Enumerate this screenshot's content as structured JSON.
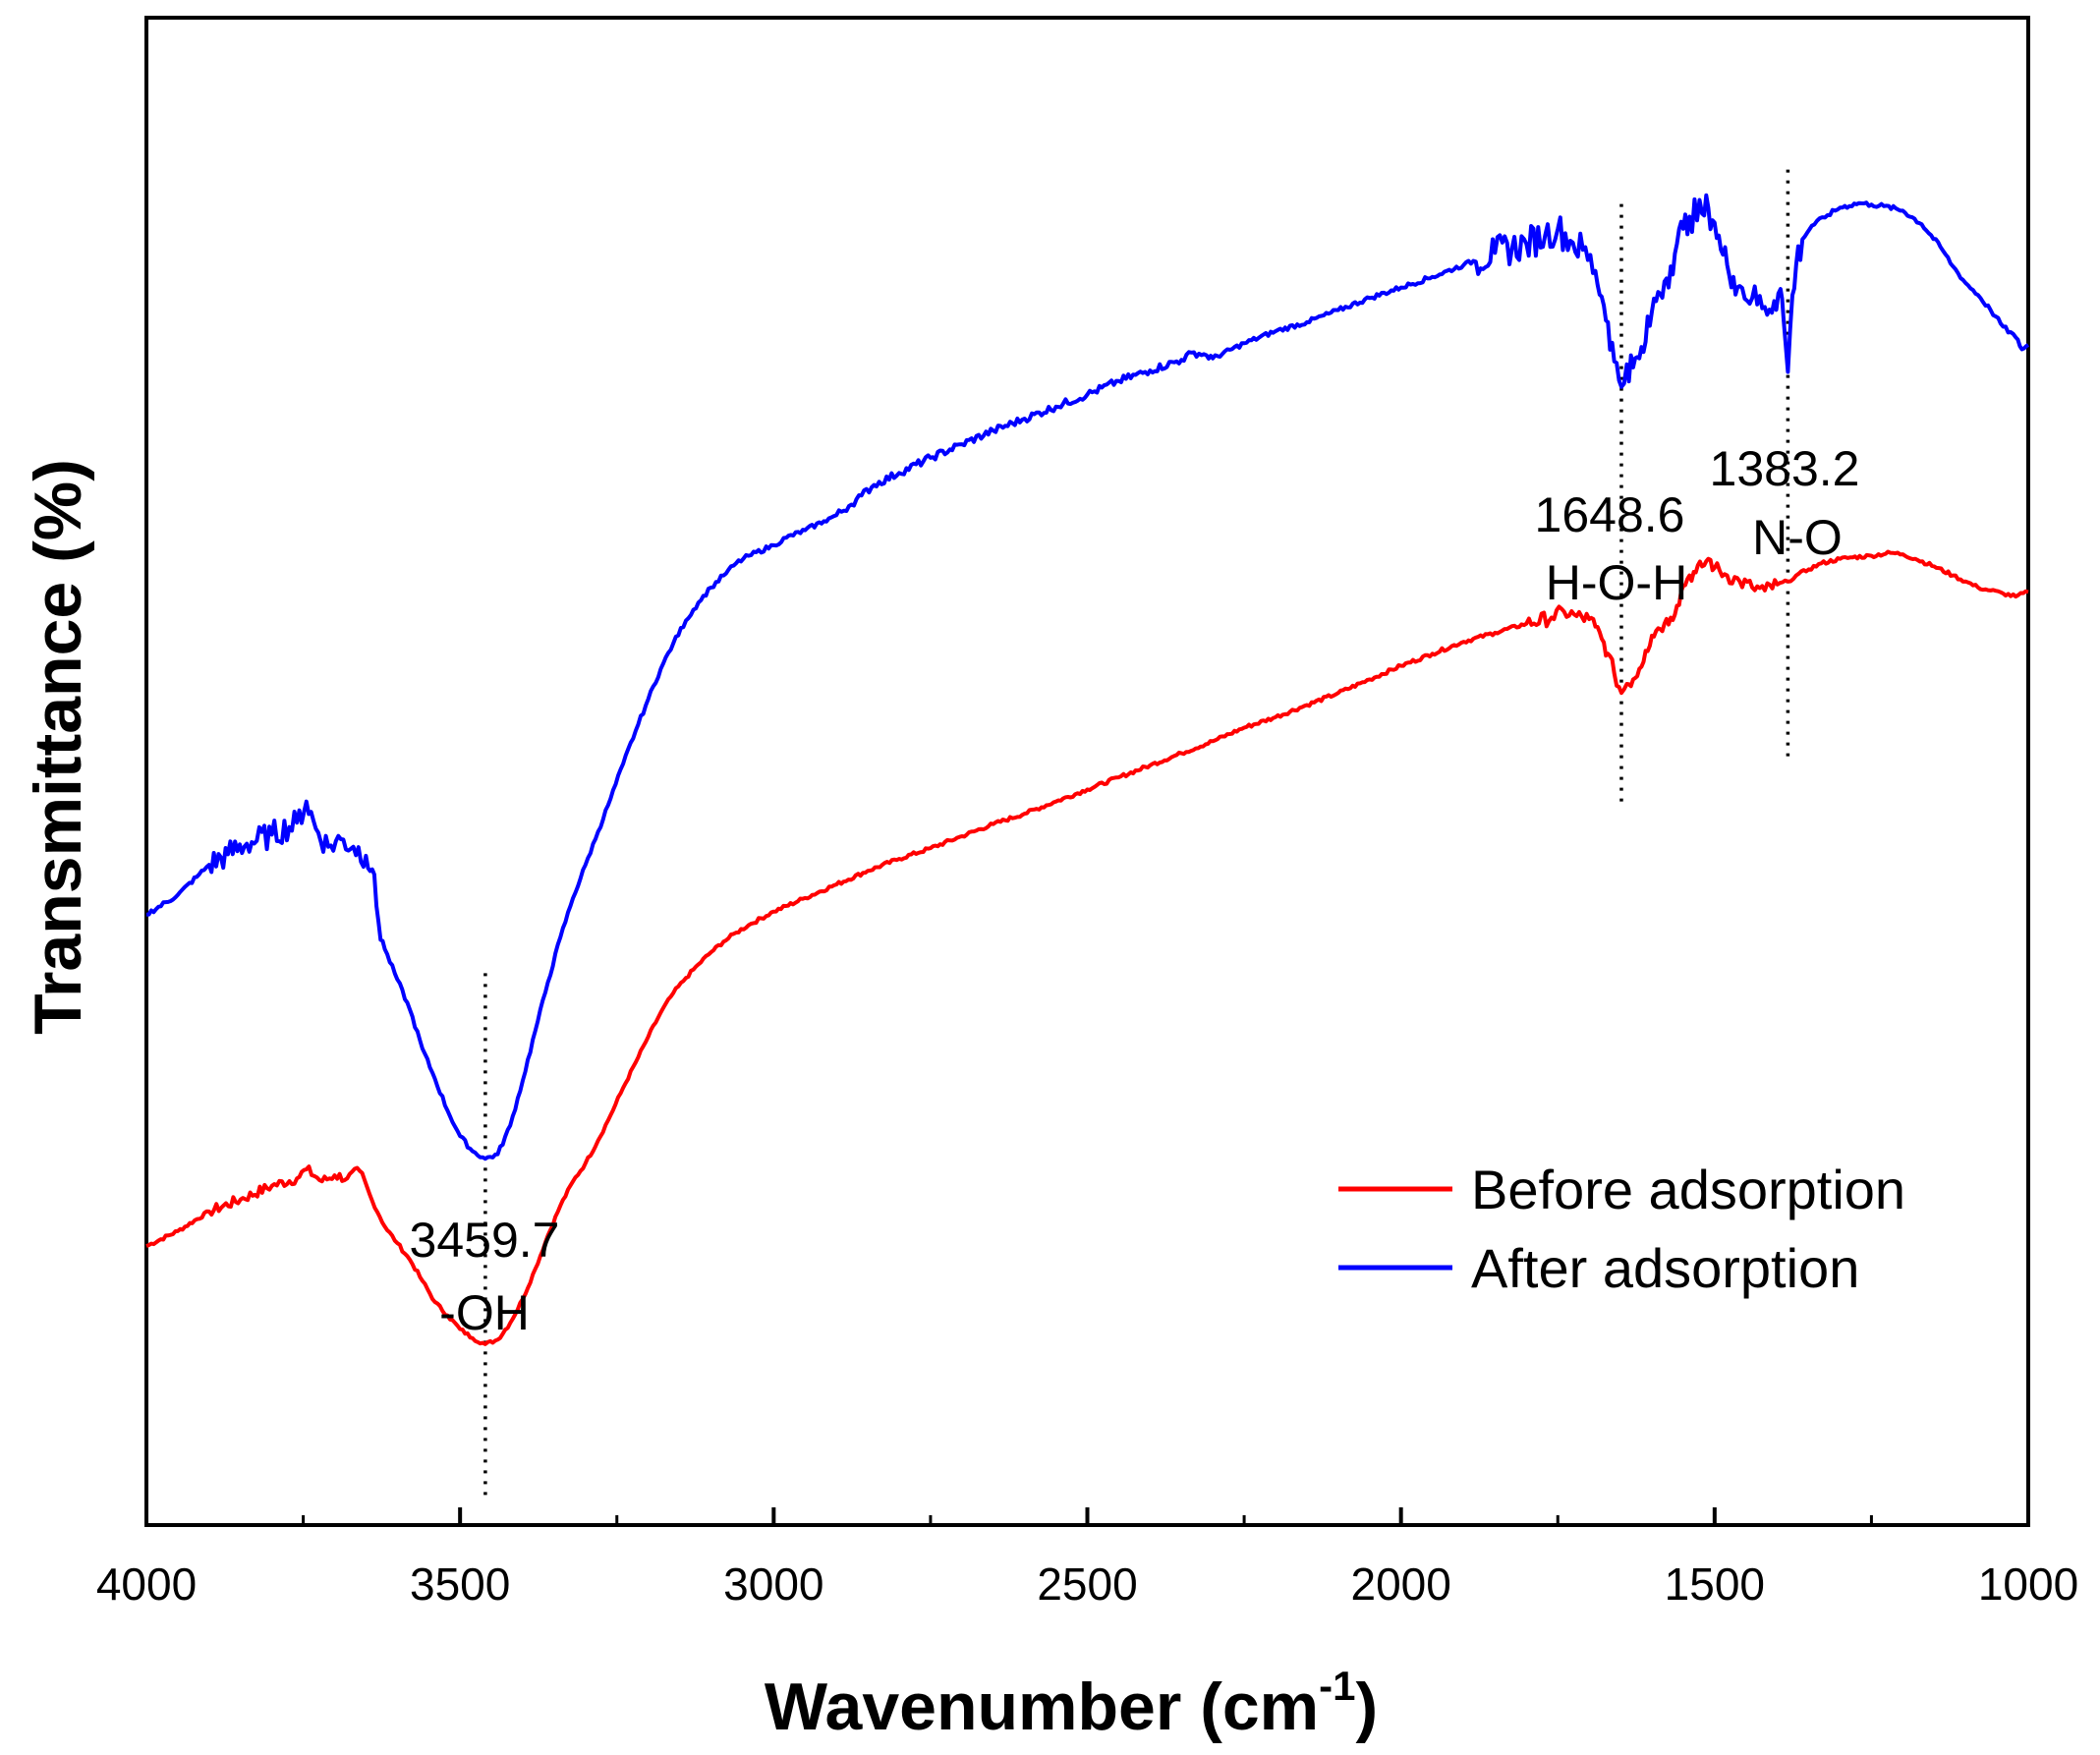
{
  "chart_data": {
    "type": "line",
    "xlabel_main": "Wavenumber (cm",
    "xlabel_sup": "-1",
    "xlabel_close": ")",
    "ylabel": "Transmittance (%)",
    "xlim": [
      4000,
      1000
    ],
    "x_reversed": true,
    "ylim": [
      0,
      100
    ],
    "y_tick_labels": false,
    "grid": false,
    "legend_position": "bottom-right",
    "x_ticks": [
      4000,
      3500,
      3000,
      2500,
      2000,
      1500,
      1000
    ],
    "series": [
      {
        "name": "Before adsorption",
        "color": "#ff0000",
        "points": [
          [
            4000,
            18.5
          ],
          [
            3950,
            19.5
          ],
          [
            3900,
            20.8
          ],
          [
            3850,
            21.6
          ],
          [
            3800,
            22.5
          ],
          [
            3760,
            23.0
          ],
          [
            3745,
            23.6
          ],
          [
            3720,
            22.8
          ],
          [
            3700,
            23.2
          ],
          [
            3680,
            23.0
          ],
          [
            3660,
            23.5
          ],
          [
            3640,
            21.5
          ],
          [
            3620,
            19.8
          ],
          [
            3600,
            18.7
          ],
          [
            3580,
            17.6
          ],
          [
            3560,
            16.2
          ],
          [
            3540,
            14.8
          ],
          [
            3520,
            13.9
          ],
          [
            3500,
            13.0
          ],
          [
            3480,
            12.4
          ],
          [
            3459.7,
            12.0
          ],
          [
            3440,
            12.3
          ],
          [
            3420,
            13.4
          ],
          [
            3400,
            15.0
          ],
          [
            3380,
            17.0
          ],
          [
            3360,
            19.2
          ],
          [
            3340,
            21.2
          ],
          [
            3320,
            22.8
          ],
          [
            3300,
            24.0
          ],
          [
            3280,
            25.5
          ],
          [
            3260,
            27.2
          ],
          [
            3240,
            29.0
          ],
          [
            3220,
            30.7
          ],
          [
            3200,
            32.4
          ],
          [
            3180,
            34.0
          ],
          [
            3160,
            35.3
          ],
          [
            3140,
            36.3
          ],
          [
            3120,
            37.2
          ],
          [
            3100,
            38.0
          ],
          [
            3080,
            38.7
          ],
          [
            3060,
            39.3
          ],
          [
            3040,
            39.8
          ],
          [
            3000,
            40.7
          ],
          [
            2950,
            41.6
          ],
          [
            2900,
            42.5
          ],
          [
            2850,
            43.4
          ],
          [
            2800,
            44.2
          ],
          [
            2750,
            44.9
          ],
          [
            2700,
            45.7
          ],
          [
            2650,
            46.5
          ],
          [
            2600,
            47.2
          ],
          [
            2550,
            48.0
          ],
          [
            2500,
            48.8
          ],
          [
            2450,
            49.6
          ],
          [
            2400,
            50.4
          ],
          [
            2350,
            51.2
          ],
          [
            2300,
            52.0
          ],
          [
            2250,
            52.9
          ],
          [
            2200,
            53.6
          ],
          [
            2150,
            54.4
          ],
          [
            2100,
            55.2
          ],
          [
            2050,
            56.1
          ],
          [
            2000,
            57.0
          ],
          [
            1950,
            57.8
          ],
          [
            1900,
            58.6
          ],
          [
            1850,
            59.2
          ],
          [
            1800,
            59.8
          ],
          [
            1760,
            60.2
          ],
          [
            1740,
            60.6
          ],
          [
            1720,
            60.3
          ],
          [
            1700,
            60.1
          ],
          [
            1690,
            59.6
          ],
          [
            1680,
            58.8
          ],
          [
            1670,
            57.8
          ],
          [
            1660,
            56.5
          ],
          [
            1648.6,
            55.2
          ],
          [
            1640,
            55.8
          ],
          [
            1630,
            56.1
          ],
          [
            1620,
            56.8
          ],
          [
            1610,
            58.0
          ],
          [
            1600,
            59.0
          ],
          [
            1590,
            59.5
          ],
          [
            1580,
            59.8
          ],
          [
            1570,
            60.2
          ],
          [
            1560,
            61.0
          ],
          [
            1550,
            62.3
          ],
          [
            1540,
            63.0
          ],
          [
            1530,
            63.2
          ],
          [
            1520,
            63.6
          ],
          [
            1510,
            64.1
          ],
          [
            1500,
            63.5
          ],
          [
            1480,
            63.0
          ],
          [
            1460,
            62.6
          ],
          [
            1440,
            62.2
          ],
          [
            1420,
            62.0
          ],
          [
            1400,
            62.4
          ],
          [
            1383.2,
            62.6
          ],
          [
            1370,
            63.0
          ],
          [
            1350,
            63.4
          ],
          [
            1330,
            63.8
          ],
          [
            1300,
            64.1
          ],
          [
            1280,
            64.2
          ],
          [
            1250,
            64.3
          ],
          [
            1220,
            64.5
          ],
          [
            1200,
            64.4
          ],
          [
            1180,
            64.1
          ],
          [
            1150,
            63.6
          ],
          [
            1120,
            63.0
          ],
          [
            1100,
            62.6
          ],
          [
            1080,
            62.2
          ],
          [
            1060,
            62.0
          ],
          [
            1040,
            61.8
          ],
          [
            1020,
            61.6
          ],
          [
            1000,
            61.9
          ]
        ]
      },
      {
        "name": "After adsorption",
        "color": "#0000ff",
        "points": [
          [
            4000,
            40.5
          ],
          [
            3950,
            41.8
          ],
          [
            3920,
            43.0
          ],
          [
            3900,
            43.8
          ],
          [
            3870,
            44.5
          ],
          [
            3840,
            45.2
          ],
          [
            3800,
            45.8
          ],
          [
            3760,
            46.6
          ],
          [
            3745,
            48.0
          ],
          [
            3730,
            46.2
          ],
          [
            3710,
            45.0
          ],
          [
            3690,
            45.5
          ],
          [
            3670,
            45.0
          ],
          [
            3650,
            44.4
          ],
          [
            3640,
            43.5
          ],
          [
            3630,
            40.0
          ],
          [
            3620,
            38.2
          ],
          [
            3600,
            36.2
          ],
          [
            3580,
            34.2
          ],
          [
            3560,
            31.6
          ],
          [
            3540,
            29.6
          ],
          [
            3520,
            27.5
          ],
          [
            3500,
            25.8
          ],
          [
            3480,
            24.8
          ],
          [
            3459.7,
            24.3
          ],
          [
            3440,
            24.6
          ],
          [
            3420,
            26.5
          ],
          [
            3400,
            29.5
          ],
          [
            3380,
            32.8
          ],
          [
            3360,
            36.0
          ],
          [
            3340,
            39.0
          ],
          [
            3320,
            41.6
          ],
          [
            3300,
            43.8
          ],
          [
            3280,
            46.0
          ],
          [
            3260,
            48.2
          ],
          [
            3240,
            50.5
          ],
          [
            3220,
            52.7
          ],
          [
            3200,
            54.8
          ],
          [
            3180,
            56.8
          ],
          [
            3160,
            58.5
          ],
          [
            3140,
            60.0
          ],
          [
            3120,
            61.2
          ],
          [
            3100,
            62.2
          ],
          [
            3080,
            63.0
          ],
          [
            3060,
            63.8
          ],
          [
            3040,
            64.3
          ],
          [
            3000,
            65.0
          ],
          [
            2980,
            65.5
          ],
          [
            2950,
            66.0
          ],
          [
            2920,
            66.6
          ],
          [
            2900,
            67.0
          ],
          [
            2880,
            67.6
          ],
          [
            2860,
            68.3
          ],
          [
            2840,
            69.0
          ],
          [
            2800,
            69.8
          ],
          [
            2750,
            70.8
          ],
          [
            2700,
            71.7
          ],
          [
            2650,
            72.6
          ],
          [
            2600,
            73.4
          ],
          [
            2550,
            74.2
          ],
          [
            2500,
            75.0
          ],
          [
            2450,
            75.9
          ],
          [
            2400,
            76.6
          ],
          [
            2350,
            77.3
          ],
          [
            2330,
            77.8
          ],
          [
            2310,
            77.6
          ],
          [
            2300,
            77.4
          ],
          [
            2250,
            78.4
          ],
          [
            2200,
            79.2
          ],
          [
            2150,
            79.8
          ],
          [
            2100,
            80.6
          ],
          [
            2050,
            81.4
          ],
          [
            2000,
            82.1
          ],
          [
            1950,
            82.8
          ],
          [
            1900,
            83.6
          ],
          [
            1850,
            84.4
          ],
          [
            1800,
            85.0
          ],
          [
            1770,
            85.6
          ],
          [
            1750,
            86.0
          ],
          [
            1730,
            85.2
          ],
          [
            1710,
            84.6
          ],
          [
            1690,
            83.2
          ],
          [
            1680,
            81.5
          ],
          [
            1670,
            79.8
          ],
          [
            1660,
            77.2
          ],
          [
            1648.6,
            75.5
          ],
          [
            1640,
            77.0
          ],
          [
            1630,
            76.8
          ],
          [
            1620,
            77.4
          ],
          [
            1610,
            78.5
          ],
          [
            1600,
            80.5
          ],
          [
            1590,
            81.8
          ],
          [
            1580,
            82.5
          ],
          [
            1570,
            83.5
          ],
          [
            1560,
            85.0
          ],
          [
            1550,
            86.0
          ],
          [
            1540,
            86.8
          ],
          [
            1520,
            87.0
          ],
          [
            1510,
            87.4
          ],
          [
            1500,
            86.4
          ],
          [
            1490,
            84.6
          ],
          [
            1480,
            83.6
          ],
          [
            1470,
            82.8
          ],
          [
            1460,
            82.2
          ],
          [
            1440,
            81.4
          ],
          [
            1420,
            80.8
          ],
          [
            1405,
            81.2
          ],
          [
            1395,
            82.0
          ],
          [
            1390,
            80.0
          ],
          [
            1383.2,
            76.5
          ],
          [
            1376,
            81.6
          ],
          [
            1370,
            83.6
          ],
          [
            1360,
            85.3
          ],
          [
            1345,
            86.2
          ],
          [
            1320,
            86.9
          ],
          [
            1300,
            87.4
          ],
          [
            1270,
            87.7
          ],
          [
            1250,
            87.6
          ],
          [
            1230,
            87.5
          ],
          [
            1200,
            87.2
          ],
          [
            1170,
            86.3
          ],
          [
            1140,
            84.8
          ],
          [
            1120,
            83.5
          ],
          [
            1100,
            82.4
          ],
          [
            1080,
            81.6
          ],
          [
            1060,
            80.6
          ],
          [
            1040,
            79.5
          ],
          [
            1020,
            78.8
          ],
          [
            1010,
            78.0
          ],
          [
            1000,
            78.3
          ]
        ]
      }
    ],
    "annotations": [
      {
        "x": 3459.7,
        "lines": [
          "3459.7",
          "-OH"
        ],
        "line_from": 2,
        "line_to": 37
      },
      {
        "x": 1648.6,
        "lines": [
          "1648.6",
          "H-O-H"
        ],
        "line_from": 48,
        "line_to": 88
      },
      {
        "x": 1383.2,
        "lines": [
          "1383.2",
          "N-O"
        ],
        "line_from": 51,
        "line_to": 90
      }
    ]
  }
}
